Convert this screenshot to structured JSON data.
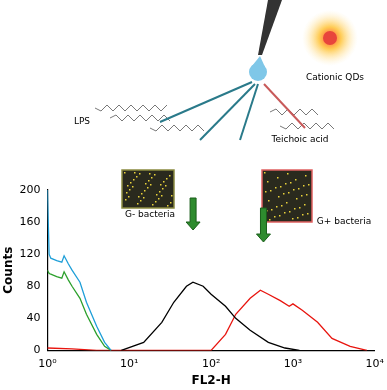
{
  "chart_data": {
    "type": "line",
    "x_label": "FL2-H",
    "y_label": "Counts",
    "log": "x",
    "grid": false,
    "xlim": [
      1,
      10000
    ],
    "xticks": [
      {
        "value": 1,
        "label": "10⁰"
      },
      {
        "value": 10,
        "label": "10¹"
      },
      {
        "value": 100,
        "label": "10²"
      },
      {
        "value": 1000,
        "label": "10³"
      },
      {
        "value": 10000,
        "label": "10⁴"
      }
    ],
    "ylim": [
      0,
      200
    ],
    "yticks": [
      0,
      40,
      80,
      120,
      160,
      200
    ],
    "annotations": [
      "Cationic QDs",
      "LPS",
      "Teichoic acid",
      "G- bacteria",
      "G+ bacteria"
    ],
    "series": [
      {
        "color": "#1f9fd8",
        "x": [
          1,
          1.05,
          1.1,
          1.3,
          1.5,
          1.6,
          1.8,
          2,
          2.5,
          3,
          4,
          5,
          6
        ],
        "values": [
          200,
          120,
          115,
          112,
          110,
          118,
          108,
          100,
          85,
          60,
          30,
          10,
          0
        ]
      },
      {
        "color": "#2ca02c",
        "x": [
          1,
          1.05,
          1.1,
          1.3,
          1.5,
          1.6,
          1.8,
          2,
          2.5,
          3,
          4,
          5,
          6
        ],
        "values": [
          100,
          96,
          95,
          92,
          90,
          98,
          88,
          80,
          65,
          45,
          20,
          5,
          0
        ]
      },
      {
        "color": "#000000",
        "x": [
          8,
          15,
          25,
          35,
          50,
          60,
          80,
          100,
          150,
          200,
          300,
          500,
          800,
          1200
        ],
        "values": [
          0,
          10,
          35,
          60,
          80,
          85,
          80,
          70,
          55,
          40,
          25,
          10,
          3,
          0
        ]
      },
      {
        "color": "#e8150f",
        "x": [
          1,
          2,
          4,
          100,
          150,
          200,
          300,
          400,
          500,
          700,
          900,
          1000,
          1300,
          2000,
          3000,
          5000,
          8000
        ],
        "values": [
          3,
          2,
          0,
          0,
          20,
          45,
          65,
          75,
          70,
          62,
          55,
          58,
          50,
          35,
          15,
          5,
          0
        ]
      }
    ]
  }
}
